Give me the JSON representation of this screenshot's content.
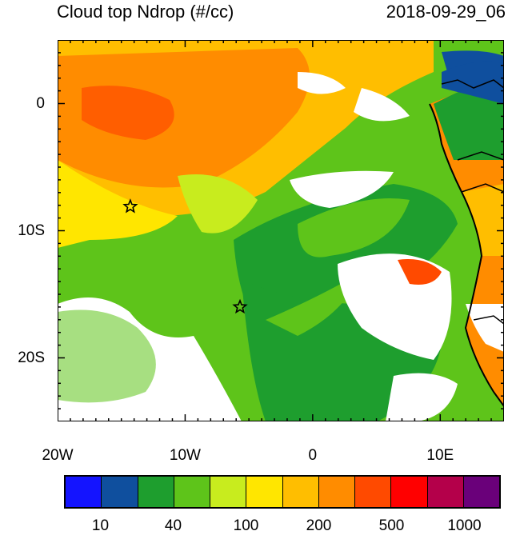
{
  "title_left": "Cloud top Ndrop (#/cc)",
  "title_right": "2018-09-29_06",
  "x_ticks": [
    {
      "value": -20,
      "label": "20W"
    },
    {
      "value": -10,
      "label": "10W"
    },
    {
      "value": 0,
      "label": "0"
    },
    {
      "value": 10,
      "label": "10E"
    }
  ],
  "y_ticks": [
    {
      "value": 0,
      "label": "0"
    },
    {
      "value": -10,
      "label": "10S"
    },
    {
      "value": -20,
      "label": "20S"
    }
  ],
  "colorbar": {
    "colors": [
      "#1414ff",
      "#0f4f9e",
      "#1e9e2e",
      "#5ec41a",
      "#c8ec1e",
      "#ffe600",
      "#ffbe00",
      "#ff8c00",
      "#ff4a00",
      "#ff0000",
      "#b4004a",
      "#6a007a"
    ],
    "labels": [
      "10",
      "40",
      "100",
      "200",
      "500",
      "1000"
    ]
  },
  "markers": [
    {
      "name": "star-marker-north",
      "lon": -14.3,
      "lat": -8.1
    },
    {
      "name": "star-marker-south",
      "lon": -5.7,
      "lat": -16.0
    }
  ],
  "map_extent": {
    "lon": [
      -20,
      15
    ],
    "lat": [
      -25,
      5
    ]
  }
}
